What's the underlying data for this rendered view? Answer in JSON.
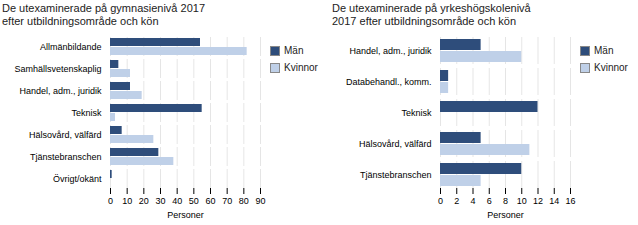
{
  "chart_data": [
    {
      "type": "bar",
      "orientation": "horizontal",
      "title": "De utexaminerade på gymnasienivå 2017\nefter utbildningsområde och kön",
      "categories": [
        "Allmänbildande",
        "Samhällsvetenskaplig",
        "Handel, adm., juridik",
        "Teknisk",
        "Hälsovård, välfärd",
        "Tjänstebranschen",
        "Övrigt/okänt"
      ],
      "series": [
        {
          "name": "Män",
          "color": "#2E4D7B",
          "values": [
            54,
            5,
            12,
            55,
            7,
            29,
            1
          ]
        },
        {
          "name": "Kvinnor",
          "color": "#BFD0E8",
          "values": [
            82,
            12,
            19,
            3,
            26,
            38,
            0
          ]
        }
      ],
      "xlim": [
        0,
        90
      ],
      "xticks": [
        0,
        10,
        20,
        30,
        40,
        50,
        60,
        70,
        80,
        90
      ],
      "xlabel": "Personer",
      "grid": true,
      "legend": "right"
    },
    {
      "type": "bar",
      "orientation": "horizontal",
      "title": "De utexaminerade på yrkeshögskolenivå\n2017 efter utbildningsområde och kön",
      "categories": [
        "Handel, adm., juridik",
        "Databehandl., komm.",
        "Teknisk",
        "Hälsovård, välfärd",
        "Tjänstebranschen"
      ],
      "series": [
        {
          "name": "Män",
          "color": "#2E4D7B",
          "values": [
            5,
            1,
            12,
            5,
            10
          ]
        },
        {
          "name": "Kvinnor",
          "color": "#BFD0E8",
          "values": [
            10,
            1,
            0,
            11,
            5
          ]
        }
      ],
      "xlim": [
        0,
        16
      ],
      "xticks": [
        0,
        2,
        4,
        6,
        8,
        10,
        12,
        14,
        16
      ],
      "xlabel": "Personer",
      "grid": true,
      "legend": "right"
    }
  ]
}
